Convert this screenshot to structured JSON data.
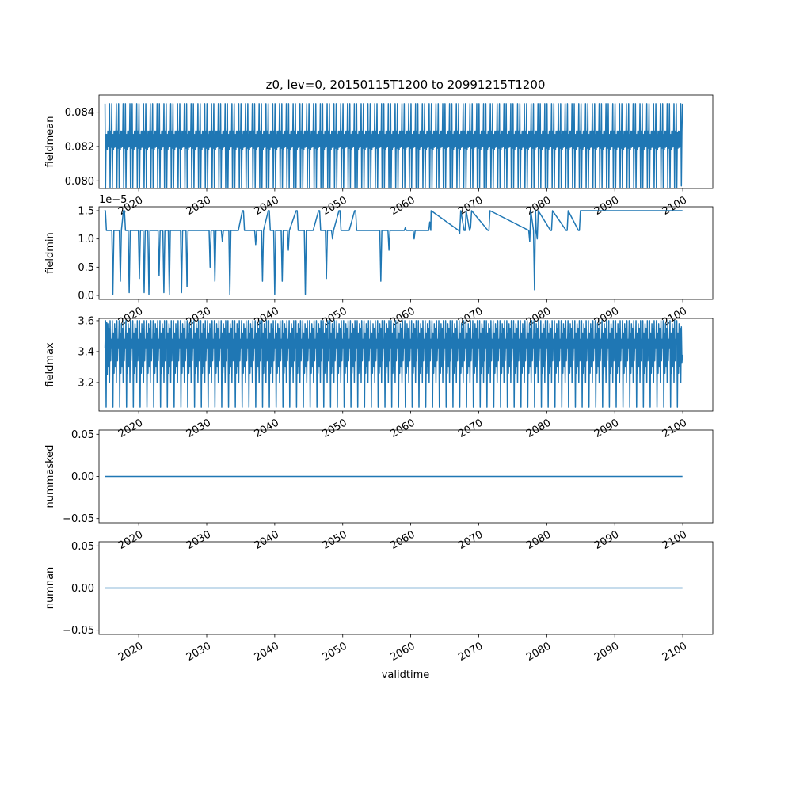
{
  "chart_data": {
    "type": "line",
    "title": "z0, lev=0, 20150115T1200 to 20991215T1200",
    "xlabel": "validtime",
    "x_start": "2015-01-15T12:00",
    "x_end": "2099-12-15T12:00",
    "xlim": [
      "2014-03-01",
      "2104-06-01"
    ],
    "xticks": [
      "2020",
      "2030",
      "2040",
      "2050",
      "2060",
      "2070",
      "2080",
      "2090",
      "2100"
    ],
    "line_color": "#1f77b4",
    "panels": [
      {
        "ylabel": "fieldmean",
        "ylim": [
          0.07955,
          0.085
        ],
        "yticks": [
          "0.080",
          "0.082",
          "0.084"
        ],
        "offset_text": "",
        "annual_cycle": [
          0.0845,
          0.0796,
          0.0827,
          0.0818,
          0.0829,
          0.08195,
          0.0829,
          0.082,
          0.0845,
          0.0796,
          0.0829,
          0.0819
        ],
        "first_year": [
          0.0845,
          0.07955,
          0.0827,
          0.0827,
          0.0818,
          0.0829,
          0.082,
          0.0829,
          0.0845,
          0.0796,
          0.0829,
          0.08195
        ],
        "last_year": [
          0.0845,
          0.0796,
          0.0828,
          0.0819,
          0.0829,
          0.08195,
          0.0829,
          0.082,
          0.0845,
          0.0797,
          0.0829,
          0.0845
        ]
      },
      {
        "ylabel": "fieldmin",
        "ylim": [
          -0.07,
          1.57
        ],
        "yticks": [
          "0.0",
          "0.5",
          "1.0",
          "1.5"
        ],
        "offset_text": "1e−5",
        "baseline": 1.5,
        "events": [
          {
            "year": 2015.1,
            "value": 1.5
          },
          {
            "year": 2016.2,
            "value": 0.02
          },
          {
            "year": 2016.8,
            "value": 1.15
          },
          {
            "year": 2017.3,
            "value": 0.25
          },
          {
            "year": 2017.9,
            "value": 1.5
          },
          {
            "year": 2018.6,
            "value": 0.05
          },
          {
            "year": 2019.2,
            "value": 1.15
          },
          {
            "year": 2020.1,
            "value": 0.3
          },
          {
            "year": 2020.8,
            "value": 0.05
          },
          {
            "year": 2021.5,
            "value": 0.02
          },
          {
            "year": 2022.4,
            "value": 1.15
          },
          {
            "year": 2023.0,
            "value": 0.35
          },
          {
            "year": 2023.7,
            "value": 0.05
          },
          {
            "year": 2024.5,
            "value": 0.02
          },
          {
            "year": 2025.4,
            "value": 1.15
          },
          {
            "year": 2026.3,
            "value": 0.05
          },
          {
            "year": 2027.1,
            "value": 0.15
          },
          {
            "year": 2028.0,
            "value": 1.15
          },
          {
            "year": 2029.4,
            "value": 1.15
          },
          {
            "year": 2030.5,
            "value": 0.5
          },
          {
            "year": 2031.2,
            "value": 0.25
          },
          {
            "year": 2032.3,
            "value": 0.95
          },
          {
            "year": 2033.4,
            "value": 0.02
          },
          {
            "year": 2034.5,
            "value": 1.15
          },
          {
            "year": 2035.4,
            "value": 1.5
          },
          {
            "year": 2036.3,
            "value": 1.15
          },
          {
            "year": 2037.2,
            "value": 0.9
          },
          {
            "year": 2038.2,
            "value": 0.25
          },
          {
            "year": 2039.2,
            "value": 1.5
          },
          {
            "year": 2040.0,
            "value": 0.02
          },
          {
            "year": 2041.1,
            "value": 0.25
          },
          {
            "year": 2042.0,
            "value": 0.8
          },
          {
            "year": 2043.3,
            "value": 1.5
          },
          {
            "year": 2044.5,
            "value": 0.02
          },
          {
            "year": 2045.5,
            "value": 1.15
          },
          {
            "year": 2046.6,
            "value": 1.5
          },
          {
            "year": 2047.6,
            "value": 0.3
          },
          {
            "year": 2048.5,
            "value": 1.0
          },
          {
            "year": 2049.6,
            "value": 1.5
          },
          {
            "year": 2050.8,
            "value": 1.15
          },
          {
            "year": 2051.9,
            "value": 1.5
          },
          {
            "year": 2053.0,
            "value": 1.15
          },
          {
            "year": 2054.5,
            "value": 1.15
          },
          {
            "year": 2055.6,
            "value": 0.25
          },
          {
            "year": 2056.8,
            "value": 0.8
          },
          {
            "year": 2058.0,
            "value": 1.15
          },
          {
            "year": 2059.2,
            "value": 1.2
          },
          {
            "year": 2060.5,
            "value": 1.0
          },
          {
            "year": 2061.7,
            "value": 1.15
          },
          {
            "year": 2062.8,
            "value": 1.3
          },
          {
            "year": 2067.2,
            "value": 1.1
          },
          {
            "year": 2068.0,
            "value": 1.15
          },
          {
            "year": 2068.8,
            "value": 1.2
          },
          {
            "year": 2071.5,
            "value": 1.15
          },
          {
            "year": 2077.5,
            "value": 0.95
          },
          {
            "year": 2078.2,
            "value": 0.1
          },
          {
            "year": 2078.6,
            "value": 1.0
          },
          {
            "year": 2080.7,
            "value": 1.15
          },
          {
            "year": 2083.0,
            "value": 1.15
          },
          {
            "year": 2084.8,
            "value": 1.15
          }
        ]
      },
      {
        "ylabel": "fieldmax",
        "ylim": [
          3.015,
          3.615
        ],
        "yticks": [
          "3.2",
          "3.4",
          "3.6"
        ],
        "offset_text": "",
        "annual_cycle": [
          3.42,
          3.6,
          3.04,
          3.52,
          3.26,
          3.58,
          3.3,
          3.55,
          3.2,
          3.6,
          3.34,
          3.48
        ],
        "first_year": [
          3.42,
          3.6,
          3.04,
          3.59,
          3.25,
          3.58,
          3.3,
          3.55,
          3.2,
          3.6,
          3.34,
          3.48
        ],
        "last_year": [
          3.45,
          3.6,
          3.04,
          3.52,
          3.26,
          3.58,
          3.3,
          3.55,
          3.2,
          3.56,
          3.33,
          3.38
        ]
      },
      {
        "ylabel": "nummasked",
        "ylim": [
          -0.055,
          0.055
        ],
        "yticks": [
          "−0.05",
          "0.00",
          "0.05"
        ],
        "offset_text": "",
        "constant": 0
      },
      {
        "ylabel": "numnan",
        "ylim": [
          -0.055,
          0.055
        ],
        "yticks": [
          "−0.05",
          "0.00",
          "0.05"
        ],
        "offset_text": "",
        "constant": 0
      }
    ]
  }
}
